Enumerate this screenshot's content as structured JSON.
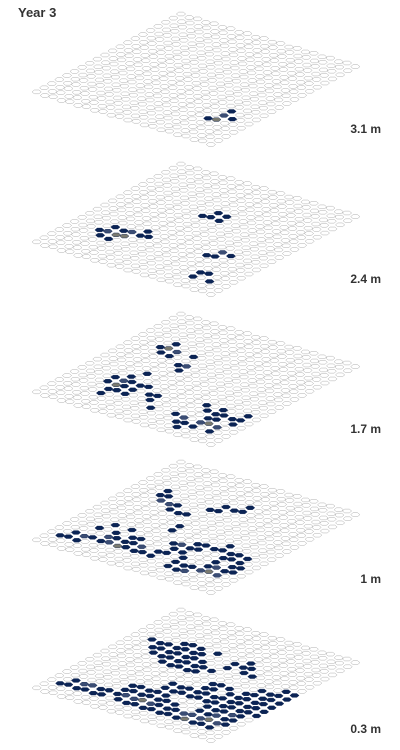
{
  "title": "Year 3",
  "colors": {
    "empty": "#ffffff",
    "low": "#0b2455",
    "mid": "#3b4d74",
    "high": "#7a7a70",
    "peak": "#f0dc4c"
  },
  "grid": {
    "rows": 20,
    "cols": 22
  },
  "layers": [
    {
      "label": "3.1 m",
      "cells": [
        [
          18,
          14,
          2
        ],
        [
          18,
          15,
          3
        ],
        [
          17,
          15,
          1
        ],
        [
          19,
          14,
          1
        ],
        [
          18,
          13,
          1
        ]
      ]
    },
    {
      "label": "2.4 m",
      "cells": [
        [
          4,
          13,
          1
        ],
        [
          5,
          13,
          1
        ],
        [
          6,
          13,
          2
        ],
        [
          5,
          14,
          3
        ],
        [
          4,
          14,
          2
        ],
        [
          3,
          14,
          1
        ],
        [
          6,
          14,
          3
        ],
        [
          5,
          15,
          1
        ],
        [
          4,
          15,
          1
        ],
        [
          7,
          13,
          1
        ],
        [
          7,
          12,
          1
        ],
        [
          8,
          13,
          1
        ],
        [
          10,
          6,
          1
        ],
        [
          11,
          6,
          1
        ],
        [
          10,
          7,
          1
        ],
        [
          9,
          7,
          1
        ],
        [
          11,
          7,
          1
        ],
        [
          16,
          13,
          1
        ],
        [
          16,
          12,
          2
        ],
        [
          15,
          13,
          1
        ],
        [
          17,
          12,
          1
        ],
        [
          17,
          16,
          1
        ],
        [
          18,
          16,
          1
        ],
        [
          17,
          17,
          1
        ],
        [
          19,
          17,
          1
        ]
      ]
    },
    {
      "label": "1.7 m",
      "cells": [
        [
          4,
          5,
          1
        ],
        [
          4,
          6,
          3
        ],
        [
          3,
          6,
          1
        ],
        [
          5,
          6,
          2
        ],
        [
          4,
          7,
          1
        ],
        [
          5,
          7,
          1
        ],
        [
          7,
          6,
          1
        ],
        [
          7,
          8,
          1
        ],
        [
          8,
          8,
          2
        ],
        [
          8,
          9,
          1
        ],
        [
          6,
          11,
          1
        ],
        [
          7,
          13,
          1
        ],
        [
          5,
          15,
          1
        ],
        [
          5,
          16,
          1
        ],
        [
          8,
          13,
          1
        ],
        [
          7,
          14,
          1
        ],
        [
          6,
          14,
          1
        ],
        [
          7,
          15,
          1
        ],
        [
          6,
          15,
          1
        ],
        [
          5,
          14,
          3
        ],
        [
          6,
          13,
          1
        ],
        [
          5,
          13,
          2
        ],
        [
          4,
          13,
          1
        ],
        [
          5,
          12,
          1
        ],
        [
          4,
          14,
          1
        ],
        [
          9,
          14,
          1
        ],
        [
          10,
          14,
          1
        ],
        [
          10,
          15,
          1
        ],
        [
          11,
          16,
          1
        ],
        [
          14,
          16,
          1
        ],
        [
          15,
          16,
          2
        ],
        [
          15,
          17,
          1
        ],
        [
          16,
          18,
          1
        ],
        [
          17,
          17,
          1
        ],
        [
          18,
          16,
          3
        ],
        [
          19,
          16,
          2
        ],
        [
          17,
          16,
          2
        ],
        [
          16,
          17,
          1
        ],
        [
          19,
          17,
          1
        ],
        [
          18,
          14,
          1
        ],
        [
          17,
          14,
          1
        ],
        [
          16,
          14,
          1
        ],
        [
          17,
          13,
          1
        ],
        [
          15,
          13,
          1
        ],
        [
          20,
          14,
          1
        ],
        [
          20,
          13,
          1
        ],
        [
          19,
          14,
          1
        ],
        [
          20,
          15,
          1
        ],
        [
          18,
          15,
          1
        ],
        [
          17,
          15,
          1
        ]
      ]
    },
    {
      "label": "1 m",
      "cells": [
        [
          3,
          6,
          1
        ],
        [
          3,
          5,
          1
        ],
        [
          4,
          6,
          1
        ],
        [
          4,
          7,
          2
        ],
        [
          5,
          7,
          2
        ],
        [
          6,
          7,
          1
        ],
        [
          6,
          8,
          1
        ],
        [
          7,
          8,
          1
        ],
        [
          8,
          8,
          1
        ],
        [
          9,
          10,
          1
        ],
        [
          9,
          11,
          1
        ],
        [
          7,
          14,
          1
        ],
        [
          6,
          13,
          1
        ],
        [
          8,
          14,
          1
        ],
        [
          4,
          13,
          1
        ],
        [
          3,
          14,
          1
        ],
        [
          5,
          14,
          1
        ],
        [
          6,
          15,
          1
        ],
        [
          5,
          15,
          2
        ],
        [
          5,
          16,
          1
        ],
        [
          4,
          16,
          1
        ],
        [
          6,
          16,
          2
        ],
        [
          7,
          16,
          3
        ],
        [
          7,
          15,
          1
        ],
        [
          8,
          16,
          1
        ],
        [
          8,
          15,
          1
        ],
        [
          9,
          15,
          2
        ],
        [
          9,
          16,
          1
        ],
        [
          10,
          16,
          1
        ],
        [
          11,
          15,
          1
        ],
        [
          11,
          16,
          1
        ],
        [
          12,
          14,
          1
        ],
        [
          13,
          14,
          1
        ],
        [
          12,
          15,
          1
        ],
        [
          14,
          15,
          1
        ],
        [
          14,
          16,
          1
        ],
        [
          14,
          17,
          1
        ],
        [
          15,
          17,
          1
        ],
        [
          16,
          17,
          2
        ],
        [
          17,
          16,
          2
        ],
        [
          18,
          15,
          2
        ],
        [
          17,
          15,
          1
        ],
        [
          18,
          16,
          3
        ],
        [
          19,
          16,
          2
        ],
        [
          19,
          15,
          1
        ],
        [
          20,
          15,
          1
        ],
        [
          20,
          14,
          1
        ],
        [
          17,
          14,
          1
        ],
        [
          16,
          16,
          1
        ],
        [
          15,
          16,
          1
        ],
        [
          13,
          13,
          1
        ],
        [
          13,
          12,
          1
        ],
        [
          14,
          13,
          1
        ],
        [
          14,
          12,
          1
        ],
        [
          12,
          13,
          2
        ],
        [
          11,
          13,
          1
        ],
        [
          15,
          12,
          1
        ],
        [
          16,
          11,
          1
        ],
        [
          16,
          12,
          1
        ],
        [
          17,
          12,
          1
        ],
        [
          18,
          12,
          1
        ],
        [
          19,
          12,
          1
        ],
        [
          18,
          13,
          1
        ],
        [
          19,
          13,
          1
        ],
        [
          17,
          13,
          1
        ],
        [
          19,
          14,
          1
        ],
        [
          12,
          4,
          1
        ],
        [
          12,
          5,
          1
        ],
        [
          11,
          5,
          1
        ],
        [
          10,
          6,
          1
        ],
        [
          10,
          5,
          1
        ],
        [
          9,
          6,
          1
        ],
        [
          2,
          16,
          1
        ],
        [
          1,
          17,
          1
        ],
        [
          2,
          17,
          1
        ],
        [
          3,
          16,
          2
        ],
        [
          4,
          16,
          1
        ],
        [
          3,
          17,
          1
        ]
      ]
    },
    {
      "label": "0.3 m",
      "cells": [
        [
          2,
          6,
          1
        ],
        [
          3,
          6,
          1
        ],
        [
          4,
          6,
          1
        ],
        [
          5,
          5,
          1
        ],
        [
          6,
          5,
          1
        ],
        [
          7,
          5,
          1
        ],
        [
          5,
          6,
          1
        ],
        [
          6,
          6,
          1
        ],
        [
          7,
          6,
          1
        ],
        [
          8,
          6,
          1
        ],
        [
          9,
          5,
          1
        ],
        [
          4,
          7,
          1
        ],
        [
          5,
          7,
          1
        ],
        [
          6,
          7,
          1
        ],
        [
          7,
          7,
          1
        ],
        [
          8,
          7,
          1
        ],
        [
          3,
          7,
          1
        ],
        [
          9,
          7,
          1
        ],
        [
          8,
          8,
          1
        ],
        [
          9,
          8,
          1
        ],
        [
          10,
          8,
          1
        ],
        [
          8,
          9,
          1
        ],
        [
          9,
          9,
          1
        ],
        [
          10,
          9,
          1
        ],
        [
          11,
          8,
          1
        ],
        [
          5,
          8,
          1
        ],
        [
          6,
          8,
          1
        ],
        [
          7,
          8,
          1
        ],
        [
          4,
          8,
          1
        ],
        [
          6,
          9,
          1
        ],
        [
          7,
          9,
          1
        ],
        [
          13,
          6,
          1
        ],
        [
          13,
          5,
          1
        ],
        [
          12,
          6,
          1
        ],
        [
          12,
          7,
          1
        ],
        [
          14,
          6,
          1
        ],
        [
          14,
          7,
          1
        ],
        [
          15,
          7,
          1
        ],
        [
          13,
          10,
          1
        ],
        [
          14,
          10,
          1
        ],
        [
          13,
          11,
          1
        ],
        [
          14,
          11,
          1
        ],
        [
          15,
          10,
          1
        ],
        [
          2,
          16,
          1
        ],
        [
          3,
          16,
          2
        ],
        [
          4,
          16,
          2
        ],
        [
          5,
          16,
          1
        ],
        [
          4,
          17,
          1
        ],
        [
          1,
          17,
          1
        ],
        [
          2,
          17,
          1
        ],
        [
          3,
          17,
          1
        ],
        [
          5,
          17,
          1
        ],
        [
          6,
          16,
          1
        ],
        [
          6,
          17,
          1
        ],
        [
          7,
          14,
          1
        ],
        [
          7,
          15,
          1
        ],
        [
          8,
          15,
          1
        ],
        [
          8,
          14,
          1
        ],
        [
          9,
          14,
          1
        ],
        [
          9,
          15,
          1
        ],
        [
          10,
          15,
          1
        ],
        [
          10,
          14,
          1
        ],
        [
          11,
          14,
          1
        ],
        [
          11,
          15,
          1
        ],
        [
          7,
          16,
          1
        ],
        [
          8,
          16,
          2
        ],
        [
          9,
          16,
          2
        ],
        [
          10,
          16,
          3
        ],
        [
          11,
          16,
          2
        ],
        [
          12,
          16,
          1
        ],
        [
          12,
          15,
          1
        ],
        [
          13,
          15,
          1
        ],
        [
          13,
          16,
          1
        ],
        [
          8,
          17,
          1
        ],
        [
          9,
          17,
          1
        ],
        [
          10,
          17,
          1
        ],
        [
          11,
          17,
          1
        ],
        [
          12,
          17,
          1
        ],
        [
          13,
          17,
          1
        ],
        [
          14,
          16,
          1
        ],
        [
          14,
          17,
          1
        ],
        [
          15,
          17,
          1
        ],
        [
          15,
          16,
          2
        ],
        [
          16,
          17,
          3
        ],
        [
          16,
          16,
          2
        ],
        [
          17,
          16,
          2
        ],
        [
          17,
          15,
          1
        ],
        [
          18,
          15,
          2
        ],
        [
          18,
          16,
          3
        ],
        [
          19,
          16,
          2
        ],
        [
          19,
          15,
          1
        ],
        [
          20,
          15,
          1
        ],
        [
          20,
          16,
          1
        ],
        [
          18,
          17,
          1
        ],
        [
          19,
          17,
          1
        ],
        [
          17,
          17,
          1
        ],
        [
          17,
          14,
          1
        ],
        [
          18,
          14,
          1
        ],
        [
          19,
          14,
          2
        ],
        [
          20,
          14,
          1
        ],
        [
          16,
          15,
          1
        ],
        [
          16,
          14,
          1
        ],
        [
          15,
          13,
          1
        ],
        [
          16,
          13,
          1
        ],
        [
          17,
          13,
          1
        ],
        [
          18,
          13,
          1
        ],
        [
          19,
          13,
          1
        ],
        [
          20,
          13,
          1
        ],
        [
          21,
          13,
          1
        ],
        [
          21,
          12,
          1
        ],
        [
          20,
          12,
          1
        ],
        [
          19,
          12,
          1
        ],
        [
          18,
          12,
          1
        ],
        [
          17,
          12,
          1
        ],
        [
          16,
          12,
          1
        ],
        [
          15,
          12,
          1
        ],
        [
          14,
          12,
          1
        ],
        [
          17,
          11,
          1
        ],
        [
          18,
          11,
          1
        ],
        [
          19,
          11,
          1
        ],
        [
          20,
          11,
          1
        ],
        [
          21,
          11,
          1
        ],
        [
          16,
          11,
          1
        ],
        [
          18,
          10,
          1
        ],
        [
          19,
          10,
          1
        ],
        [
          20,
          10,
          1
        ],
        [
          17,
          10,
          1
        ],
        [
          21,
          10,
          1
        ],
        [
          18,
          9,
          1
        ],
        [
          19,
          9,
          1
        ],
        [
          20,
          9,
          1
        ],
        [
          21,
          9,
          1
        ],
        [
          21,
          8,
          1
        ],
        [
          20,
          8,
          1
        ],
        [
          13,
          13,
          1
        ],
        [
          12,
          13,
          1
        ],
        [
          12,
          12,
          1
        ],
        [
          13,
          12,
          1
        ],
        [
          14,
          13,
          1
        ],
        [
          11,
          12,
          1
        ],
        [
          10,
          12,
          1
        ],
        [
          10,
          13,
          1
        ],
        [
          11,
          13,
          1
        ]
      ]
    }
  ]
}
